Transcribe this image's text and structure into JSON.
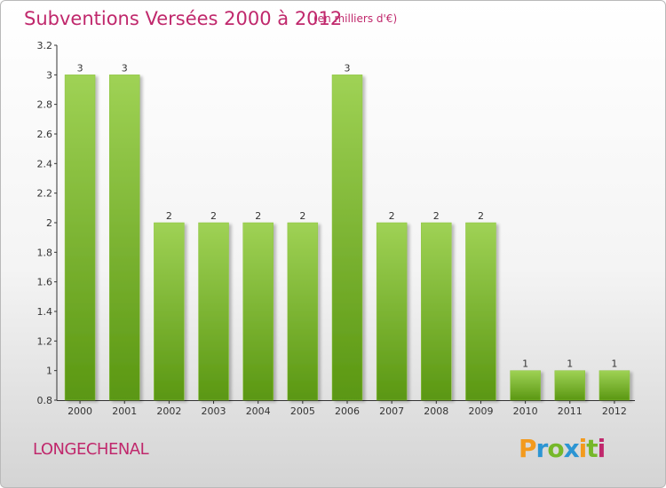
{
  "title": "Subventions Versées 2000 à 2012",
  "subtitle": "(en milliers d'€)",
  "commune": "LONGECHENAL",
  "logo": {
    "text": "Proxiti",
    "icon": "proxiti-logo"
  },
  "colors": {
    "title": "#c0286c",
    "bar_top": "#9acd4f",
    "bar_bottom": "#5e9a14",
    "axis": "#333333"
  },
  "chart_data": {
    "type": "bar",
    "categories": [
      "2000",
      "2001",
      "2002",
      "2003",
      "2004",
      "2005",
      "2006",
      "2007",
      "2008",
      "2009",
      "2010",
      "2011",
      "2012"
    ],
    "values": [
      3,
      3,
      2,
      2,
      2,
      2,
      3,
      2,
      2,
      2,
      1,
      1,
      1
    ],
    "data_labels": [
      "3",
      "3",
      "2",
      "2",
      "2",
      "2",
      "3",
      "2",
      "2",
      "2",
      "1",
      "1",
      "1"
    ],
    "ylim": [
      0.8,
      3.2
    ],
    "yticks": [
      0.8,
      1,
      1.2,
      1.4,
      1.6,
      1.8,
      2,
      2.2,
      2.4,
      2.6,
      2.8,
      3,
      3.2
    ],
    "ytick_labels": [
      "0.8",
      "1",
      "1.2",
      "1.4",
      "1.6",
      "1.8",
      "2",
      "2.2",
      "2.4",
      "2.6",
      "2.8",
      "3",
      "3.2"
    ],
    "grid": false,
    "legend": "none"
  }
}
